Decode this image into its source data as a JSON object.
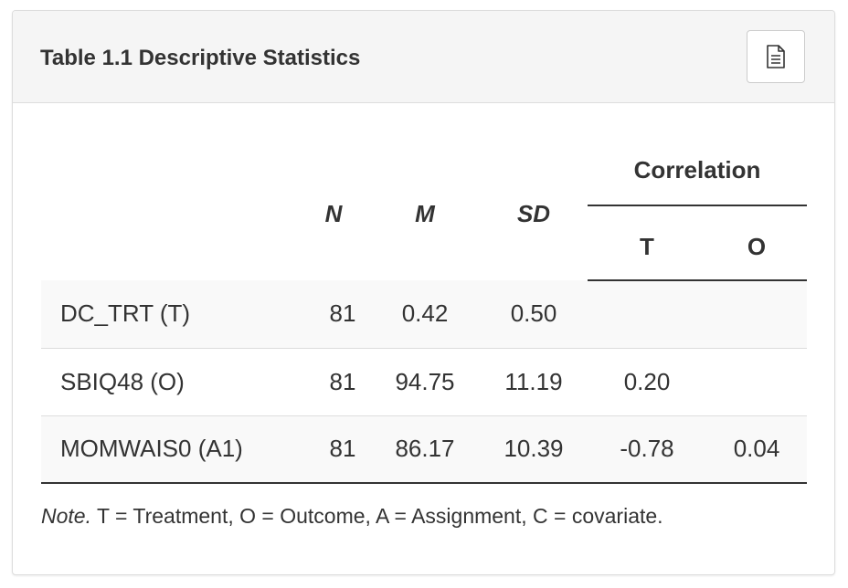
{
  "panel": {
    "title": "Table 1.1 Descriptive Statistics",
    "export_icon": "document-icon"
  },
  "table": {
    "columns": {
      "n": "N",
      "m": "M",
      "sd": "SD",
      "group": "Correlation",
      "t": "T",
      "o": "O"
    },
    "rows": [
      {
        "name": "DC_TRT (T)",
        "n": "81",
        "m": "0.42",
        "sd": "0.50",
        "t": "",
        "o": ""
      },
      {
        "name": "SBIQ48 (O)",
        "n": "81",
        "m": "94.75",
        "sd": "11.19",
        "t": "0.20",
        "o": ""
      },
      {
        "name": "MOMWAIS0 (A1)",
        "n": "81",
        "m": "86.17",
        "sd": "10.39",
        "t": "-0.78",
        "o": "0.04"
      }
    ]
  },
  "note": {
    "lead": "Note.",
    "text": " T = Treatment, O = Outcome, A = Assignment, C = covariate."
  }
}
